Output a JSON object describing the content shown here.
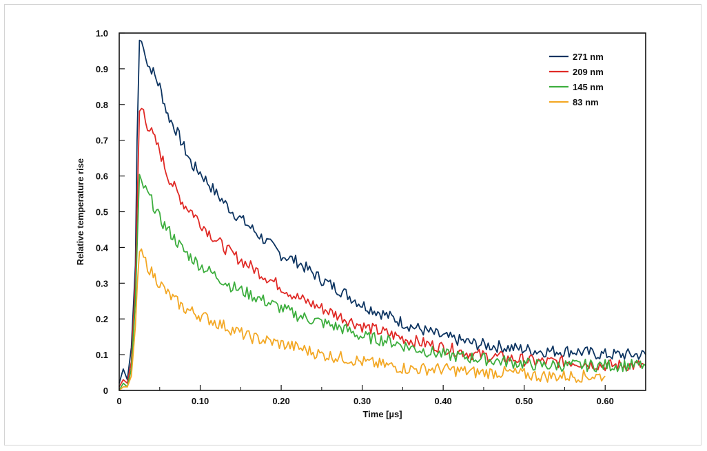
{
  "chart_data": {
    "type": "line",
    "xlabel": "Time [µs]",
    "ylabel": "Relative temperature rise",
    "xlim": [
      0,
      0.65
    ],
    "ylim": [
      0,
      1.0
    ],
    "xticks": [
      0,
      0.1,
      0.2,
      0.3,
      0.4,
      0.5,
      0.6
    ],
    "xtick_labels": [
      "0",
      "0.10",
      "0.20",
      "0.30",
      "0.40",
      "0.50",
      "0.60"
    ],
    "yticks": [
      0,
      0.1,
      0.2,
      0.3,
      0.4,
      0.5,
      0.6,
      0.7,
      0.8,
      0.9,
      1.0
    ],
    "ytick_labels": [
      "0",
      "0.1",
      "0.2",
      "0.3",
      "0.4",
      "0.5",
      "0.6",
      "0.7",
      "0.8",
      "0.9",
      "1.0"
    ],
    "grid": false,
    "legend_position": "top-right",
    "series": [
      {
        "name": "271 nm",
        "color": "#0d3461",
        "x": [
          0,
          0.005,
          0.01,
          0.015,
          0.02,
          0.022,
          0.025,
          0.03,
          0.035,
          0.04,
          0.05,
          0.06,
          0.07,
          0.08,
          0.09,
          0.1,
          0.12,
          0.14,
          0.16,
          0.18,
          0.2,
          0.22,
          0.25,
          0.28,
          0.3,
          0.33,
          0.36,
          0.4,
          0.44,
          0.48,
          0.52,
          0.56,
          0.6,
          0.65
        ],
        "y": [
          0.02,
          0.06,
          0.03,
          0.12,
          0.35,
          0.7,
          0.98,
          0.97,
          0.91,
          0.9,
          0.85,
          0.77,
          0.73,
          0.68,
          0.63,
          0.61,
          0.55,
          0.5,
          0.46,
          0.42,
          0.38,
          0.36,
          0.31,
          0.27,
          0.24,
          0.21,
          0.18,
          0.15,
          0.13,
          0.12,
          0.11,
          0.11,
          0.1,
          0.1
        ]
      },
      {
        "name": "209 nm",
        "color": "#e02a26",
        "x": [
          0,
          0.005,
          0.01,
          0.015,
          0.02,
          0.025,
          0.03,
          0.035,
          0.04,
          0.05,
          0.06,
          0.07,
          0.08,
          0.09,
          0.1,
          0.12,
          0.14,
          0.16,
          0.18,
          0.2,
          0.22,
          0.25,
          0.28,
          0.3,
          0.33,
          0.36,
          0.4,
          0.44,
          0.48,
          0.52,
          0.56,
          0.6,
          0.65
        ],
        "y": [
          0.01,
          0.03,
          0.02,
          0.08,
          0.3,
          0.78,
          0.79,
          0.74,
          0.72,
          0.67,
          0.6,
          0.56,
          0.52,
          0.5,
          0.47,
          0.42,
          0.38,
          0.35,
          0.32,
          0.29,
          0.26,
          0.23,
          0.2,
          0.18,
          0.16,
          0.14,
          0.12,
          0.1,
          0.09,
          0.08,
          0.08,
          0.07,
          0.07
        ]
      },
      {
        "name": "145 nm",
        "color": "#3dae3e",
        "x": [
          0,
          0.005,
          0.01,
          0.015,
          0.02,
          0.025,
          0.03,
          0.035,
          0.04,
          0.05,
          0.06,
          0.07,
          0.08,
          0.09,
          0.1,
          0.12,
          0.14,
          0.16,
          0.18,
          0.2,
          0.22,
          0.25,
          0.28,
          0.3,
          0.33,
          0.36,
          0.4,
          0.44,
          0.48,
          0.52,
          0.56,
          0.6,
          0.65
        ],
        "y": [
          0.0,
          0.02,
          0.01,
          0.06,
          0.25,
          0.59,
          0.57,
          0.55,
          0.53,
          0.48,
          0.45,
          0.42,
          0.39,
          0.37,
          0.35,
          0.32,
          0.29,
          0.27,
          0.25,
          0.23,
          0.21,
          0.19,
          0.17,
          0.15,
          0.14,
          0.12,
          0.1,
          0.09,
          0.08,
          0.07,
          0.07,
          0.07,
          0.07
        ]
      },
      {
        "name": "83 nm",
        "color": "#f3a825",
        "x": [
          0,
          0.005,
          0.01,
          0.015,
          0.02,
          0.025,
          0.03,
          0.035,
          0.04,
          0.05,
          0.06,
          0.07,
          0.08,
          0.09,
          0.1,
          0.12,
          0.14,
          0.16,
          0.18,
          0.2,
          0.22,
          0.25,
          0.28,
          0.3,
          0.33,
          0.36,
          0.4,
          0.44,
          0.48,
          0.52,
          0.56,
          0.6
        ],
        "y": [
          0.0,
          0.01,
          0.01,
          0.04,
          0.18,
          0.39,
          0.37,
          0.35,
          0.33,
          0.3,
          0.27,
          0.25,
          0.23,
          0.22,
          0.21,
          0.19,
          0.17,
          0.15,
          0.14,
          0.13,
          0.12,
          0.1,
          0.09,
          0.08,
          0.07,
          0.06,
          0.06,
          0.05,
          0.05,
          0.04,
          0.04,
          0.04
        ]
      }
    ]
  }
}
